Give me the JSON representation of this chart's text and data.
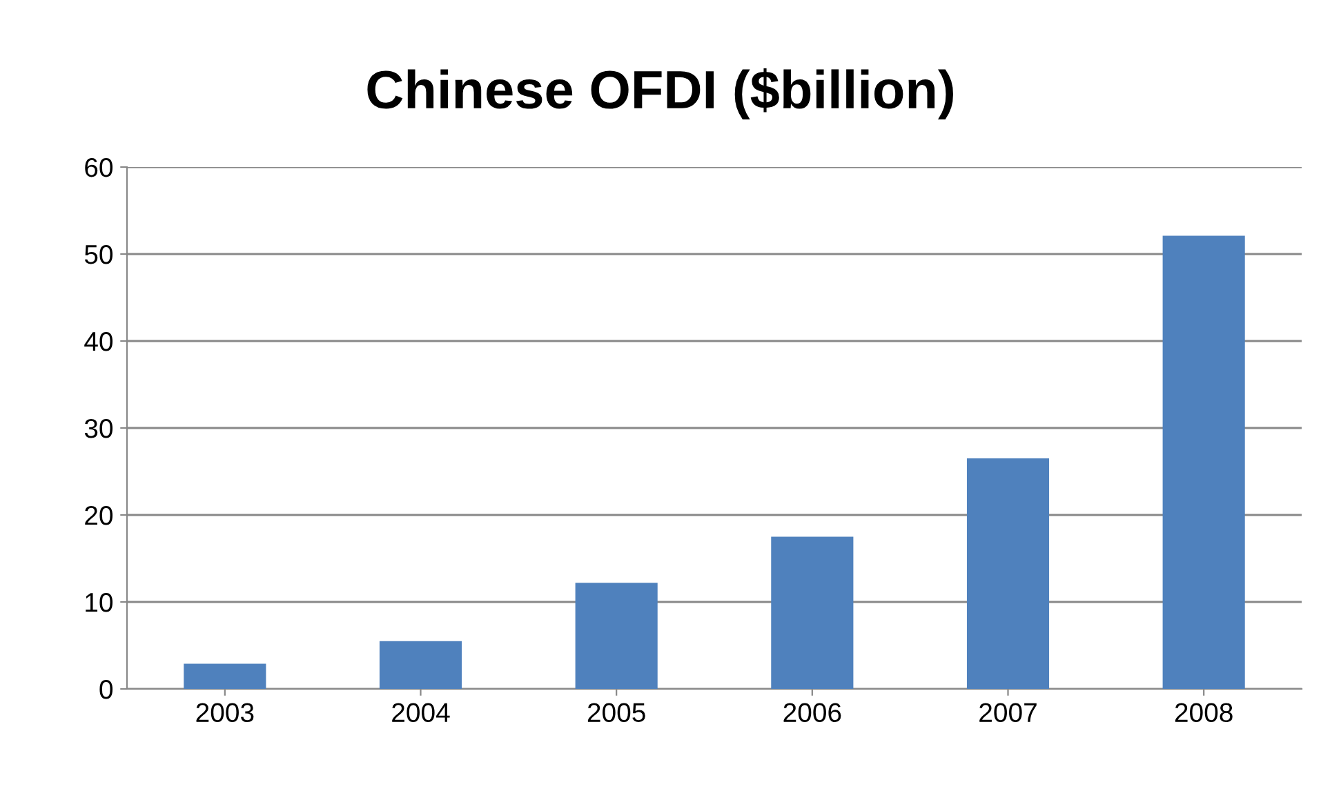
{
  "chart_data": {
    "type": "bar",
    "title": "Chinese OFDI ($billion)",
    "categories": [
      "2003",
      "2004",
      "2005",
      "2006",
      "2007",
      "2008"
    ],
    "values": [
      2.9,
      5.5,
      12.2,
      17.5,
      26.5,
      52.1
    ],
    "color": "#4f81bd",
    "ylim": [
      0,
      60
    ],
    "yticks": [
      0,
      10,
      20,
      30,
      40,
      50,
      60
    ],
    "grid": "y",
    "legend": false
  }
}
